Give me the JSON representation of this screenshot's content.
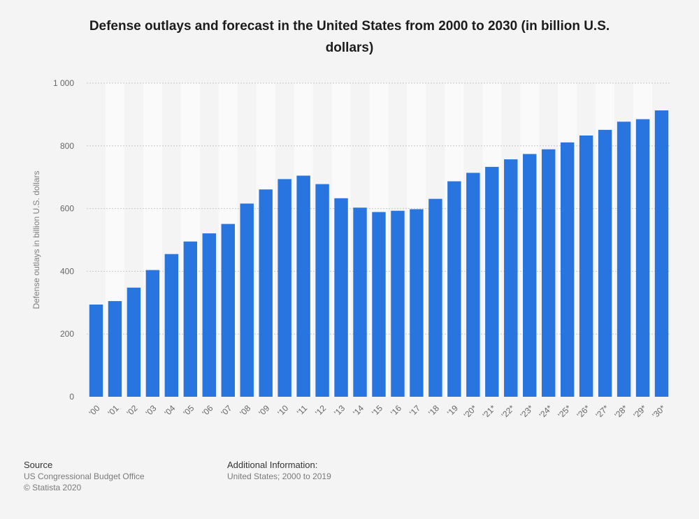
{
  "chart_data": {
    "type": "bar",
    "title": "Defense outlays and forecast in the United States from 2000 to 2030 (in billion U.S. dollars)",
    "title_line1": "Defense outlays and forecast in the United States from 2000 to 2030 (in billion U.S.",
    "title_line2": "dollars)",
    "xlabel": "",
    "ylabel": "Defense outlays in billion U.S. dollars",
    "ylim": [
      0,
      1000
    ],
    "yticks": [
      0,
      200,
      400,
      600,
      800,
      1000
    ],
    "ytick_labels": [
      "0",
      "200",
      "400",
      "600",
      "800",
      "1 000"
    ],
    "grid": true,
    "categories": [
      "'00",
      "'01",
      "'02",
      "'03",
      "'04",
      "'05",
      "'06",
      "'07",
      "'08",
      "'09",
      "'10",
      "'11",
      "'12",
      "'13",
      "'14",
      "'15",
      "'16",
      "'17",
      "'18",
      "'19",
      "'20*",
      "'21*",
      "'22*",
      "'23*",
      "'24*",
      "'25*",
      "'26*",
      "'27*",
      "'28*",
      "'29*",
      "'30*"
    ],
    "series": [
      {
        "name": "Defense outlays",
        "color": "#2875e0",
        "values": [
          294,
          305,
          348,
          404,
          455,
          495,
          521,
          551,
          616,
          661,
          694,
          705,
          678,
          633,
          603,
          589,
          593,
          598,
          631,
          687,
          714,
          733,
          757,
          774,
          789,
          811,
          833,
          851,
          877,
          885,
          913
        ]
      }
    ]
  },
  "footer": {
    "source_heading": "Source",
    "source_line1": "US Congressional Budget Office",
    "source_line2": "© Statista 2020",
    "info_heading": "Additional Information:",
    "info_line1": "United States; 2000 to 2019"
  }
}
